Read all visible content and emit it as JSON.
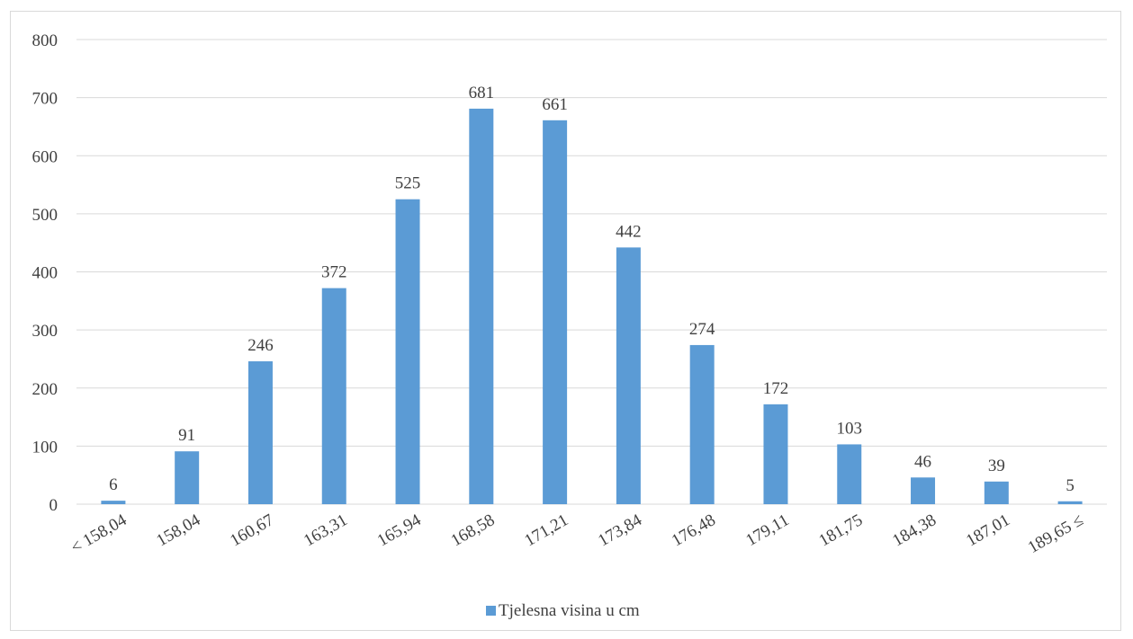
{
  "chart_data": {
    "type": "bar",
    "categories": [
      "< 158,04",
      "158,04",
      "160,67",
      "163,31",
      "165,94",
      "168,58",
      "171,21",
      "173,84",
      "176,48",
      "179,11",
      "181,75",
      "184,38",
      "187,01",
      "189,65 ≤"
    ],
    "series": [
      {
        "name": "Tjelesna visina u cm",
        "values": [
          6,
          91,
          246,
          372,
          525,
          681,
          661,
          442,
          274,
          172,
          103,
          46,
          39,
          5
        ],
        "color": "#5b9bd5"
      }
    ],
    "ylim": [
      0,
      800
    ],
    "yticks": [
      0,
      100,
      200,
      300,
      400,
      500,
      600,
      700,
      800
    ],
    "grid": true,
    "legend": "bottom",
    "data_labels": true
  }
}
